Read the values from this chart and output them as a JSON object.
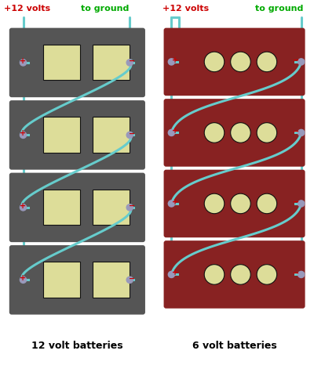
{
  "bg_color": "#ffffff",
  "wire_color": "#66cccc",
  "wire_lw": 2.2,
  "terminal_color": "#9999bb",
  "terminal_r": 0.013,
  "plus_color": "#cc0000",
  "minus_color": "#cc0000",
  "label_12v_color": "#cc0000",
  "label_gnd_color": "#00aa00",
  "label_bottom_color": "#000000",
  "battery12_color": "#555555",
  "battery6_color": "#882222",
  "cell_color": "#dddd99",
  "cell_outline": "#111111",
  "title_left": "12 volt batteries",
  "title_right": "6 volt batteries",
  "header_left_plus": "+12 volts",
  "header_left_gnd": "to ground",
  "header_right_plus": "+12 volts",
  "header_right_gnd": "to ground",
  "figsize": [
    4.0,
    4.66
  ],
  "dpi": 100
}
